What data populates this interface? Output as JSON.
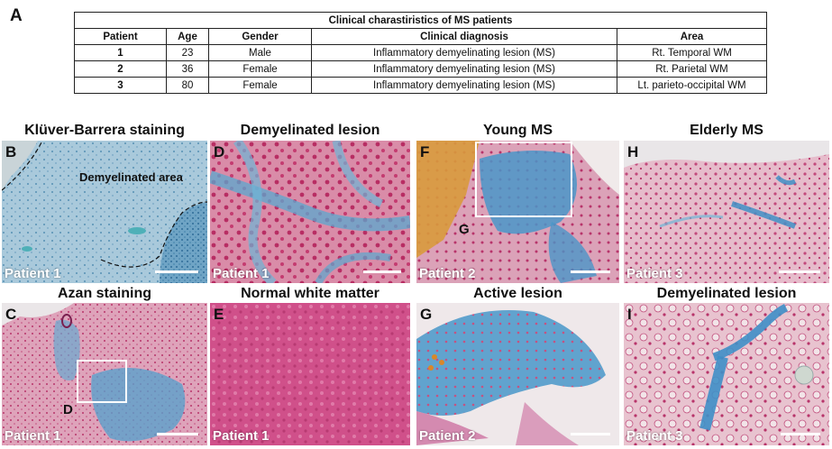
{
  "panels": {
    "A": "A",
    "B": "B",
    "C": "C",
    "D": "D",
    "E": "E",
    "F": "F",
    "G": "G",
    "H": "H",
    "I": "I"
  },
  "table": {
    "caption": "Clinical charastiristics of MS patients",
    "headers": [
      "Patient",
      "Age",
      "Gender",
      "Clinical diagnosis",
      "Area"
    ],
    "rows": [
      [
        "1",
        "23",
        "Male",
        "Inflammatory demyelinating lesion (MS)",
        "Rt. Temporal WM"
      ],
      [
        "2",
        "36",
        "Female",
        "Inflammatory demyelinating lesion (MS)",
        "Rt. Parietal WM"
      ],
      [
        "3",
        "80",
        "Female",
        "Inflammatory demyelinating lesion (MS)",
        "Lt. parieto-occipital WM"
      ]
    ]
  },
  "titles": {
    "B": "Klüver-Barrera staining",
    "D": "Demyelinated lesion",
    "F": "Young MS",
    "H": "Elderly MS",
    "C": "Azan staining",
    "E": "Normal white matter",
    "G": "Active lesion",
    "I": "Demyelinated lesion"
  },
  "patient_labels": {
    "B": "Patient 1",
    "D": "Patient 1",
    "F": "Patient 2",
    "H": "Patient 3",
    "C": "Patient 1",
    "E": "Patient 1",
    "G": "Patient 2",
    "I": "Patient 3"
  },
  "annotations": {
    "demyelinated_area": "Demyelinated area",
    "inset_D": "D",
    "inset_G": "G"
  },
  "colors": {
    "kb_blue": "#7fb3cf",
    "azan_pink": "#d97aa0",
    "azan_blue": "#3f8fc6",
    "rbc_orange": "#d98a2a",
    "normal_wm": "#d0508a"
  }
}
